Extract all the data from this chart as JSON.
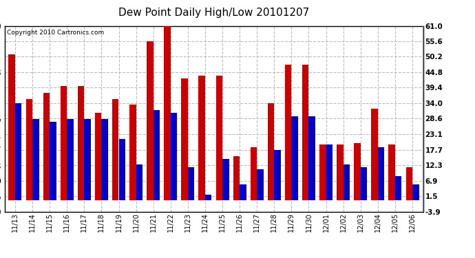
{
  "title": "Dew Point Daily High/Low 20101207",
  "copyright": "Copyright 2010 Cartronics.com",
  "dates": [
    "11/13",
    "11/14",
    "11/15",
    "11/16",
    "11/17",
    "11/18",
    "11/19",
    "11/20",
    "11/21",
    "11/22",
    "11/23",
    "11/24",
    "11/25",
    "11/26",
    "11/27",
    "11/28",
    "11/29",
    "11/30",
    "12/01",
    "12/02",
    "12/03",
    "12/04",
    "12/05",
    "12/06"
  ],
  "highs": [
    51.0,
    35.5,
    37.5,
    40.0,
    40.0,
    30.5,
    35.5,
    33.5,
    55.5,
    61.0,
    42.5,
    43.5,
    43.5,
    15.5,
    18.5,
    34.0,
    47.5,
    47.5,
    19.5,
    19.5,
    20.0,
    32.0,
    19.5,
    11.5
  ],
  "lows": [
    34.0,
    28.5,
    27.5,
    28.5,
    28.5,
    28.5,
    21.5,
    12.5,
    31.5,
    30.5,
    11.5,
    2.0,
    14.5,
    5.5,
    11.0,
    17.5,
    29.5,
    29.5,
    19.5,
    12.5,
    11.5,
    18.5,
    8.5,
    5.5
  ],
  "high_color": "#cc0000",
  "low_color": "#0000cc",
  "bg_color": "#ffffff",
  "grid_color": "#bbbbbb",
  "yticks": [
    -3.9,
    1.5,
    6.9,
    12.3,
    17.7,
    23.1,
    28.6,
    34.0,
    39.4,
    44.8,
    50.2,
    55.6,
    61.0
  ],
  "ymin": -3.9,
  "ymax": 61.0,
  "title_fontsize": 11
}
